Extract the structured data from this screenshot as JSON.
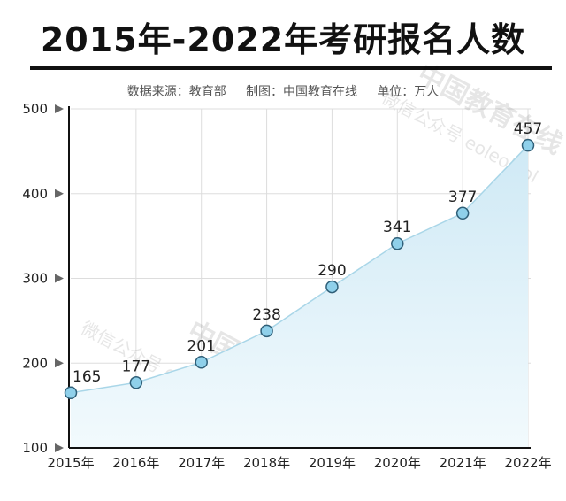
{
  "title": "2015年-2022年考研报名人数",
  "source_line": "数据来源：教育部     制图：中国教育在线     单位：万人",
  "watermark": {
    "text1": "中国教育在线",
    "text2": "微信公众号 eoleoleol"
  },
  "chart_data": {
    "type": "area",
    "title": "2015年-2022年考研报名人数",
    "categories": [
      "2015年",
      "2016年",
      "2017年",
      "2018年",
      "2019年",
      "2020年",
      "2021年",
      "2022年"
    ],
    "values": [
      165,
      177,
      201,
      238,
      290,
      341,
      377,
      457
    ],
    "ylim": [
      100,
      500
    ],
    "yticks": [
      100,
      200,
      300,
      400,
      500
    ],
    "grid": true,
    "legend": "none",
    "colors": {
      "line": "#a9d6e8",
      "fill_top": "#cfe9f5",
      "fill_bottom": "#f2fafd",
      "marker_fill": "#8fd0ea",
      "marker_stroke": "#2f5f78",
      "grid": "#dddddd",
      "axis": "#111111"
    }
  }
}
